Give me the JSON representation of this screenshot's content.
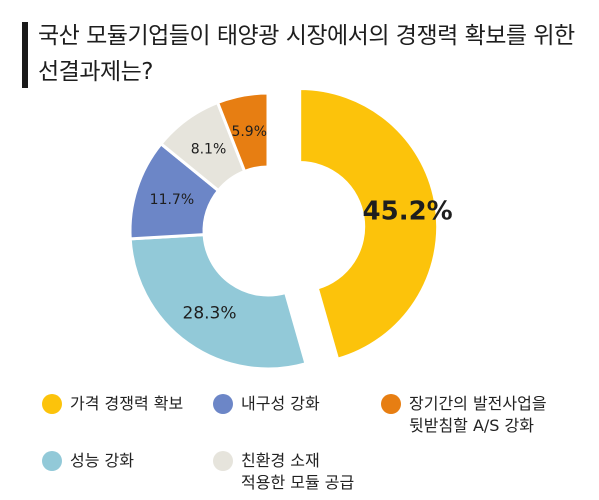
{
  "title": "국산 모듈기업들이 태양광 시장에서의 경쟁력 확보를 위한 선결과제는?",
  "chart_data": {
    "type": "pie",
    "title": "국산 모듈기업들이 태양광 시장에서의 경쟁력 확보를 위한 선결과제는?",
    "unit": "%",
    "slices": [
      {
        "name": "가격 경쟁력 확보",
        "value": 45.2,
        "label": "45.2%",
        "color": "#fcc30b"
      },
      {
        "name": "성능 강화",
        "value": 28.3,
        "label": "28.3%",
        "color": "#92c9d8"
      },
      {
        "name": "내구성 강화",
        "value": 11.7,
        "label": "11.7%",
        "color": "#6c86c7"
      },
      {
        "name": "친환경 소재\n적용한 모듈 공급",
        "value": 8.1,
        "label": "8.1%",
        "color": "#e6e4dc"
      },
      {
        "name": "장기간의 발전사업을\n뒷받침할 A/S 강화",
        "value": 5.9,
        "label": "5.9%",
        "color": "#e77e12"
      }
    ]
  },
  "legend": [
    {
      "label": "가격 경쟁력 확보",
      "color": "#fcc30b"
    },
    {
      "label": "내구성 강화",
      "color": "#6c86c7"
    },
    {
      "label": "장기간의 발전사업을\n뒷받침할 A/S 강화",
      "color": "#e77e12"
    },
    {
      "label": "성능 강화",
      "color": "#92c9d8"
    },
    {
      "label": "친환경 소재\n적용한 모듈 공급",
      "color": "#e6e4dc"
    }
  ]
}
